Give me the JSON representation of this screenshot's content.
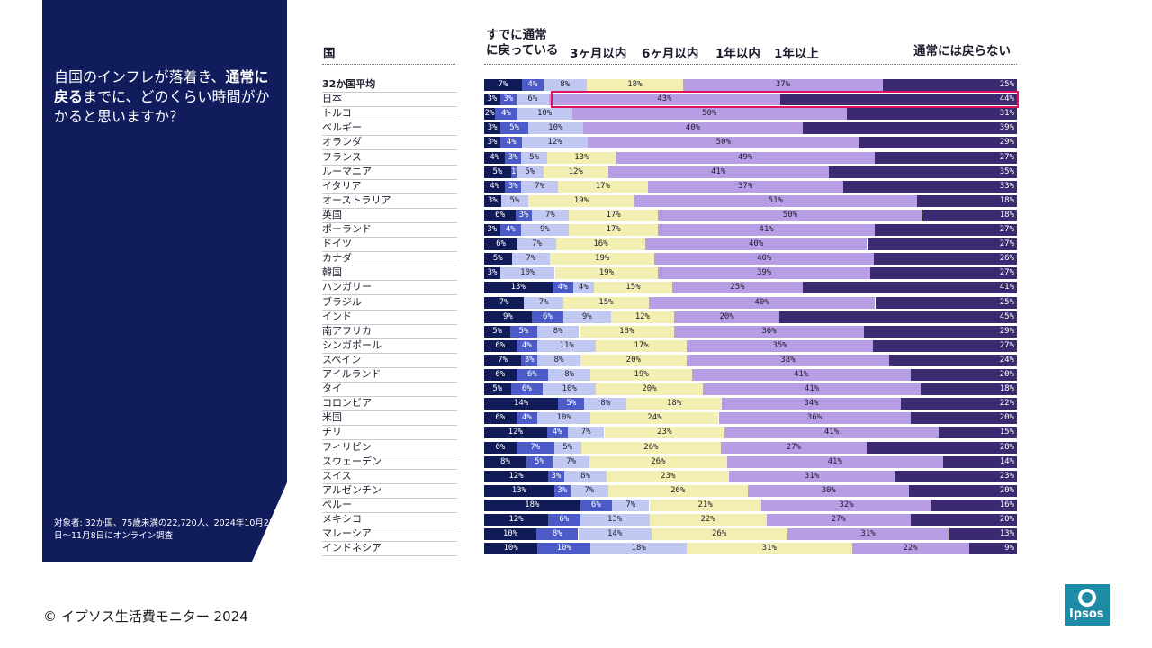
{
  "question": {
    "pre": "自国のインフレが落着き、",
    "bold1": "通常に戻る",
    "post": "までに、どのくらい時間がかかると思いますか？"
  },
  "note": "対象者: 32か国、75歳未満の22,720人、2024年10月25日～11月8日にオンライン調査",
  "copyright": "© イプソス生活費モニター 2024",
  "logo_text": "Ipsos",
  "colors": {
    "panel": "#101c5c",
    "highlight": "#e0115f",
    "segments": [
      "#111b57",
      "#4c5bc7",
      "#c1c8f2",
      "#f3efb2",
      "#b79de3",
      "#3b2a72"
    ]
  },
  "chart_data": {
    "type": "stacked-bar-horizontal",
    "country_header": "国",
    "categories_header": [
      "すでに通常に戻っている",
      "3ヶ月以内",
      "6ヶ月以内",
      "1年以内",
      "1年以上",
      "通常には戻らない"
    ],
    "header_lines": {
      "cat0": [
        "すでに通常",
        "に戻っている"
      ]
    },
    "highlight_row": "日本",
    "rows": [
      {
        "name": "32か国平均",
        "values": [
          7,
          4,
          8,
          18,
          37,
          25
        ]
      },
      {
        "name": "日本",
        "values": [
          3,
          3,
          6,
          0,
          43,
          44
        ]
      },
      {
        "name": "トルコ",
        "values": [
          2,
          4,
          10,
          0,
          50,
          31
        ]
      },
      {
        "name": "ベルギー",
        "values": [
          3,
          5,
          10,
          0,
          40,
          39
        ]
      },
      {
        "name": "オランダ",
        "values": [
          3,
          4,
          12,
          0,
          50,
          29
        ]
      },
      {
        "name": "フランス",
        "values": [
          4,
          3,
          5,
          13,
          49,
          27
        ]
      },
      {
        "name": "ルーマニア",
        "values": [
          5,
          1,
          5,
          12,
          41,
          35
        ]
      },
      {
        "name": "イタリア",
        "values": [
          4,
          3,
          7,
          17,
          37,
          33
        ]
      },
      {
        "name": "オーストラリア",
        "values": [
          3,
          0,
          5,
          19,
          51,
          18
        ]
      },
      {
        "name": "英国",
        "values": [
          6,
          3,
          7,
          17,
          50,
          18
        ]
      },
      {
        "name": "ポーランド",
        "values": [
          3,
          4,
          9,
          17,
          41,
          27
        ]
      },
      {
        "name": "ドイツ",
        "values": [
          6,
          0,
          7,
          16,
          40,
          27
        ]
      },
      {
        "name": "カナダ",
        "values": [
          5,
          0,
          7,
          19,
          40,
          26
        ]
      },
      {
        "name": "韓国",
        "values": [
          3,
          0,
          10,
          19,
          39,
          27
        ]
      },
      {
        "name": "ハンガリー",
        "values": [
          13,
          4,
          4,
          15,
          25,
          41
        ]
      },
      {
        "name": "ブラジル",
        "values": [
          7,
          0,
          7,
          15,
          40,
          25
        ]
      },
      {
        "name": "インド",
        "values": [
          9,
          6,
          9,
          12,
          20,
          45
        ]
      },
      {
        "name": "南アフリカ",
        "values": [
          5,
          5,
          8,
          18,
          36,
          29
        ]
      },
      {
        "name": "シンガポール",
        "values": [
          6,
          4,
          11,
          17,
          35,
          27
        ]
      },
      {
        "name": "スペイン",
        "values": [
          7,
          3,
          8,
          20,
          38,
          24
        ]
      },
      {
        "name": "アイルランド",
        "values": [
          6,
          6,
          8,
          19,
          41,
          20
        ]
      },
      {
        "name": "タイ",
        "values": [
          5,
          6,
          10,
          20,
          41,
          18
        ]
      },
      {
        "name": "コロンビア",
        "values": [
          14,
          5,
          8,
          18,
          34,
          22
        ]
      },
      {
        "name": "米国",
        "values": [
          6,
          4,
          10,
          24,
          36,
          20
        ]
      },
      {
        "name": "チリ",
        "values": [
          12,
          4,
          7,
          23,
          41,
          15
        ]
      },
      {
        "name": "フィリピン",
        "values": [
          6,
          7,
          5,
          26,
          27,
          28
        ]
      },
      {
        "name": "スウェーデン",
        "values": [
          8,
          5,
          7,
          26,
          41,
          14
        ]
      },
      {
        "name": "スイス",
        "values": [
          12,
          3,
          8,
          23,
          31,
          23
        ]
      },
      {
        "name": "アルゼンチン",
        "values": [
          13,
          3,
          7,
          26,
          30,
          20
        ]
      },
      {
        "name": "ペルー",
        "values": [
          18,
          6,
          7,
          21,
          32,
          16
        ]
      },
      {
        "name": "メキシコ",
        "values": [
          12,
          6,
          13,
          22,
          27,
          20
        ]
      },
      {
        "name": "マレーシア",
        "values": [
          10,
          8,
          14,
          26,
          31,
          13
        ]
      },
      {
        "name": "インドネシア",
        "values": [
          10,
          10,
          18,
          31,
          22,
          9
        ]
      }
    ]
  }
}
